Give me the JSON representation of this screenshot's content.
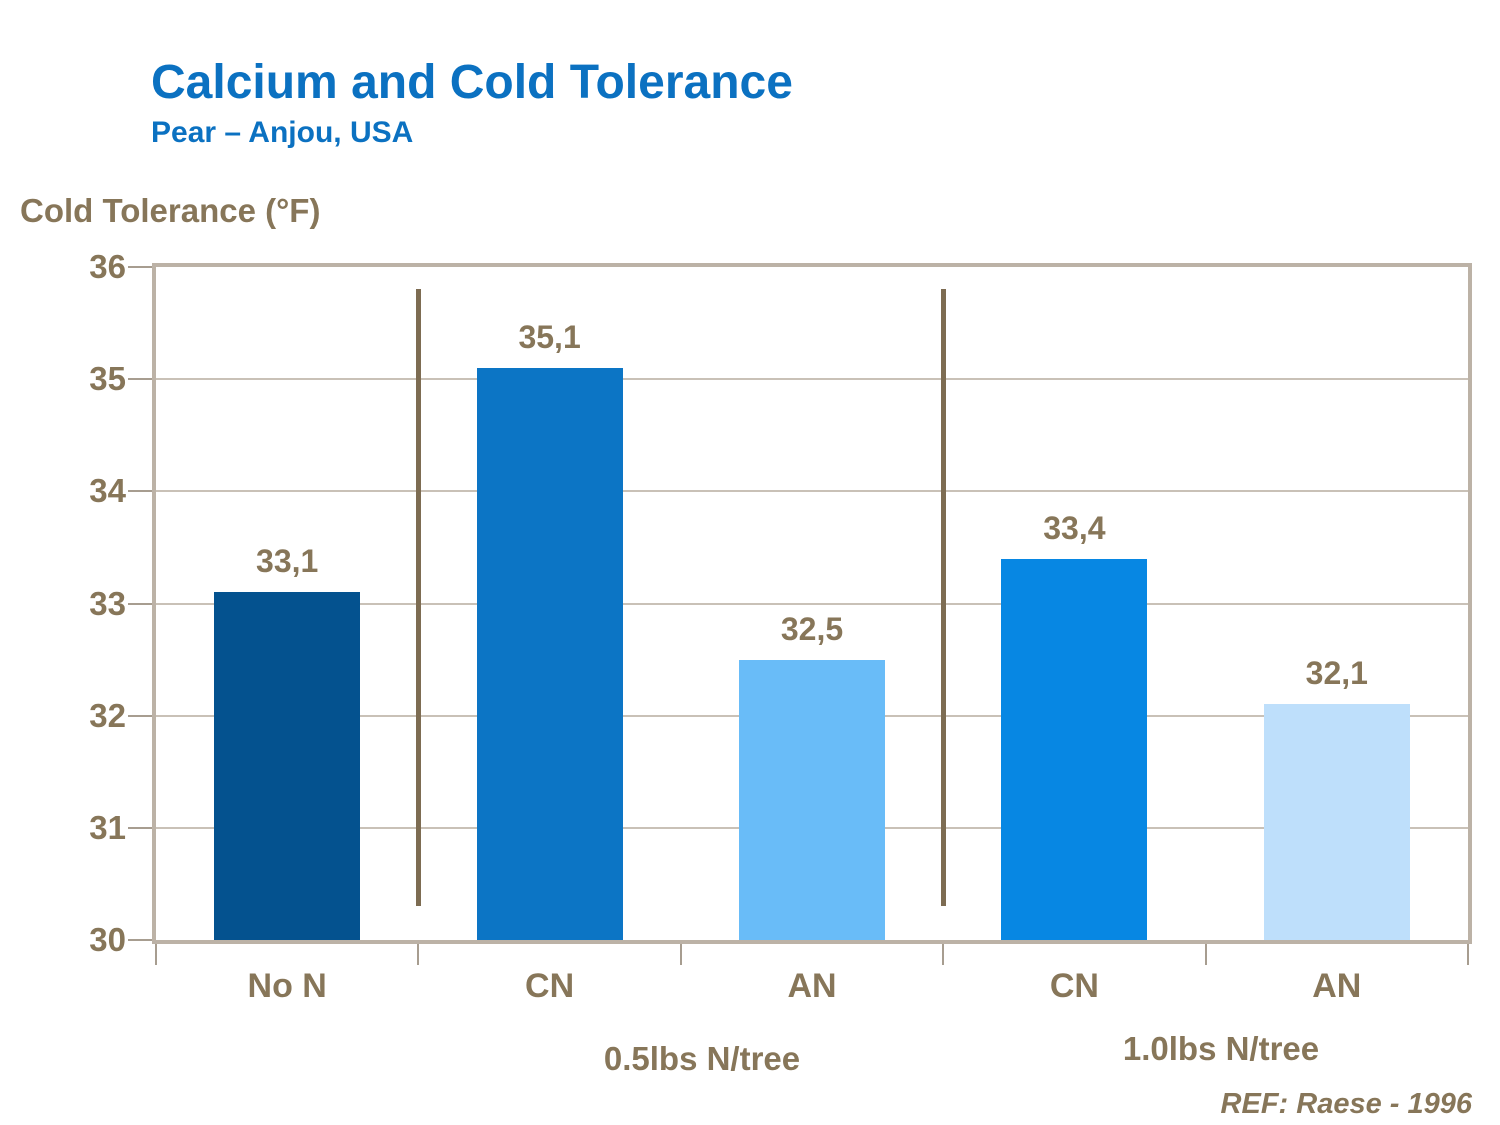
{
  "slide": {
    "title": "Calcium and Cold Tolerance",
    "subtitle": "Pear – Anjou, USA",
    "reference": "REF: Raese - 1996"
  },
  "colors": {
    "title_blue": "#0B71C1",
    "text_brown": "#877659",
    "axis_border_taupe": "#BCB2A6",
    "gridline": "#C9C1B7",
    "tick": "#A79D90",
    "group_separator": "#7D6C52",
    "bar_no_n": "#04528F",
    "bar_cn_half_lb": "#0C75C5",
    "bar_an_half_lb": "#69BCF8",
    "bar_cn_one_lb": "#0787E3",
    "bar_an_one_lb": "#BEDFFB"
  },
  "chart_data": {
    "type": "bar",
    "title": "Calcium and Cold Tolerance",
    "subtitle": "Pear – Anjou, USA",
    "ylabel": "Cold Tolerance (°F)",
    "xlabel": "",
    "ylim": [
      30,
      36
    ],
    "yticks": [
      30,
      31,
      32,
      33,
      34,
      35,
      36
    ],
    "grid": "horizontal",
    "legend_position": "none",
    "categories": [
      "No N",
      "CN",
      "AN",
      "CN",
      "AN"
    ],
    "values": [
      33.1,
      35.1,
      32.5,
      33.4,
      32.1
    ],
    "value_labels": [
      "33,1",
      "35,1",
      "32,5",
      "33,4",
      "32,1"
    ],
    "bar_colors": [
      "#04528F",
      "#0C75C5",
      "#69BCF8",
      "#0787E3",
      "#BEDFFB"
    ],
    "groups": [
      {
        "label": "0.5lbs N/tree",
        "category_indexes": [
          1,
          2
        ]
      },
      {
        "label": "1.0lbs N/tree",
        "category_indexes": [
          3,
          4
        ]
      }
    ],
    "annotation": "REF: Raese - 1996"
  }
}
